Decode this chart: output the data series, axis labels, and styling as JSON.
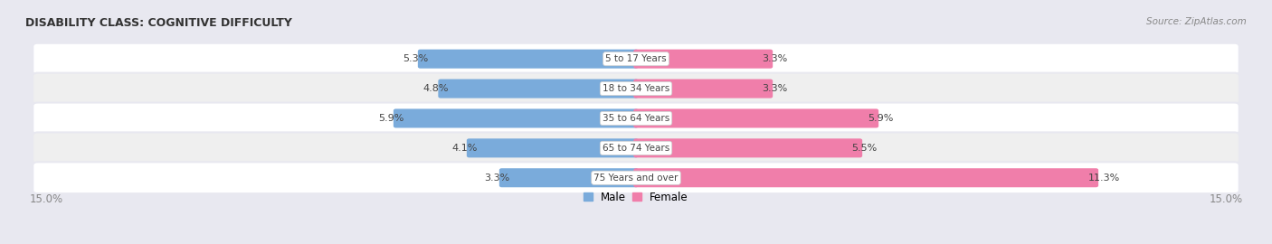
{
  "title": "DISABILITY CLASS: COGNITIVE DIFFICULTY",
  "source": "Source: ZipAtlas.com",
  "categories": [
    "5 to 17 Years",
    "18 to 34 Years",
    "35 to 64 Years",
    "65 to 74 Years",
    "75 Years and over"
  ],
  "male_values": [
    5.3,
    4.8,
    5.9,
    4.1,
    3.3
  ],
  "female_values": [
    3.3,
    3.3,
    5.9,
    5.5,
    11.3
  ],
  "xlim": 15.0,
  "male_color": "#7AABDB",
  "female_color": "#F07EAA",
  "bar_height": 0.52,
  "bg_color": "#E8E8F0",
  "row_bg_white": "#FFFFFF",
  "row_bg_gray": "#EFEFEF",
  "label_color": "#444444",
  "title_color": "#333333",
  "source_color": "#888888",
  "legend_male_color": "#7AABDB",
  "legend_female_color": "#F07EAA",
  "xlim_label_color": "#888888"
}
